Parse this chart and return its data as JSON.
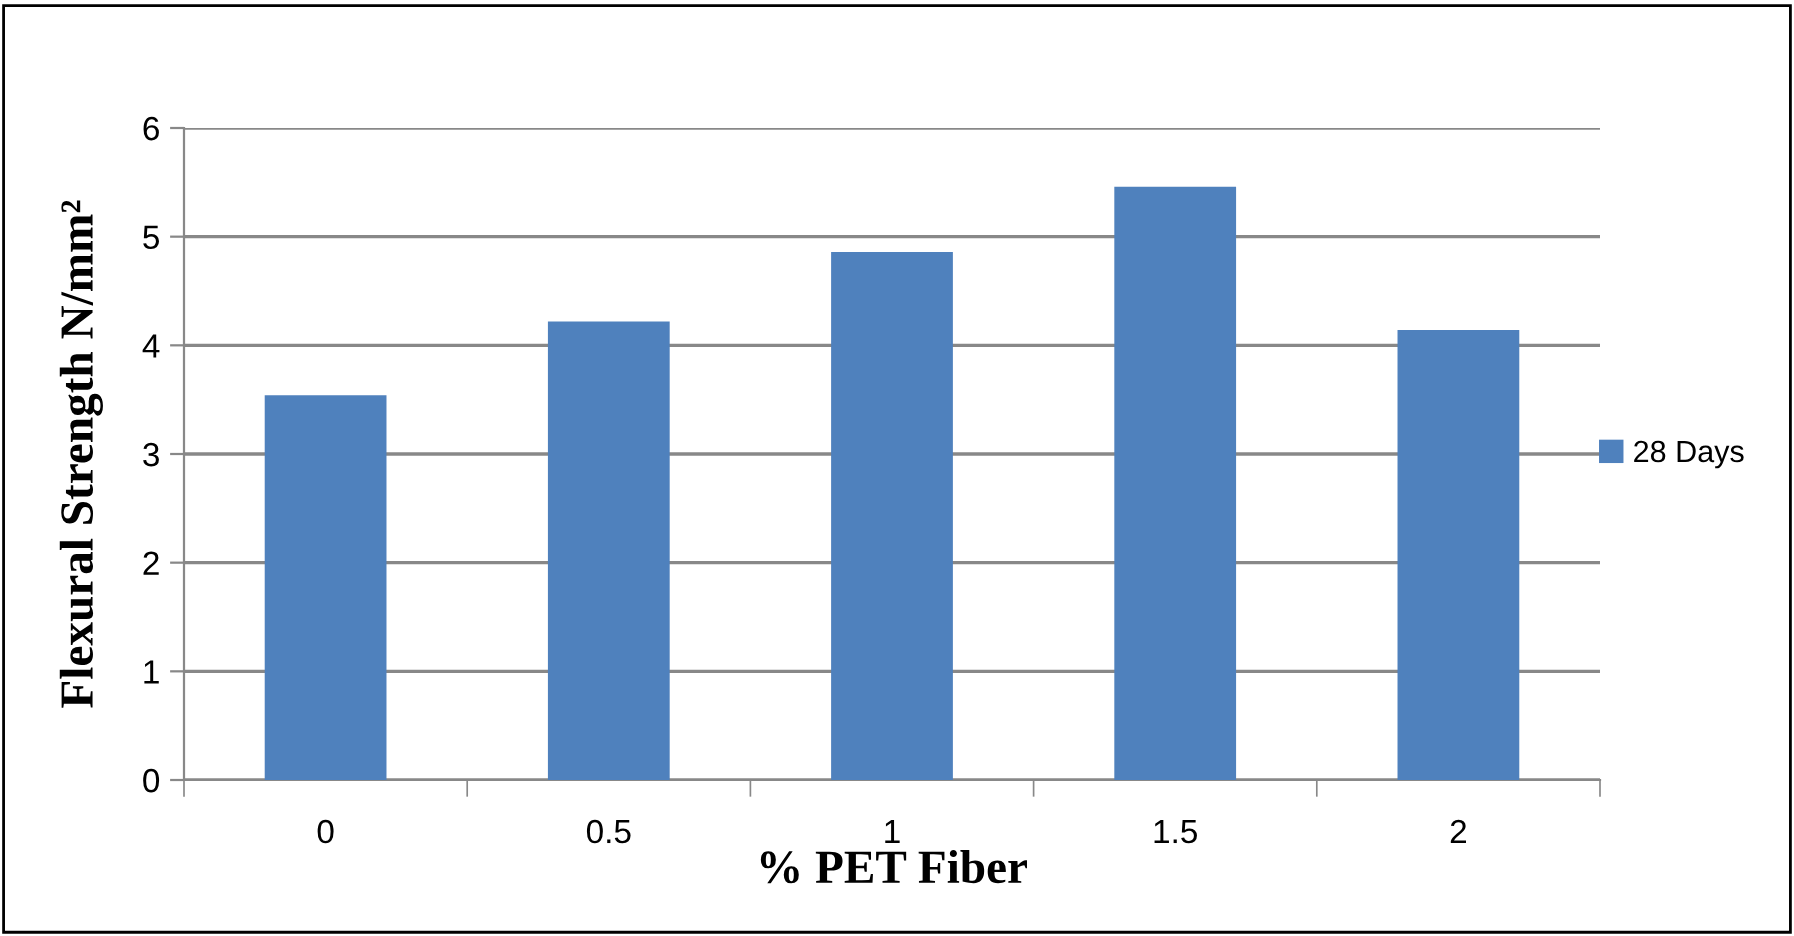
{
  "chart_data": {
    "type": "bar",
    "xlabel": "% PET Fiber",
    "ylabel": "Flexural Strength N/mm²",
    "categories": [
      "0",
      "0.5",
      "1",
      "1.5",
      "2"
    ],
    "series": [
      {
        "name": "28 Days",
        "color": "#4f81bd",
        "values": [
          3.54,
          4.22,
          4.86,
          5.46,
          4.14
        ]
      }
    ],
    "ylim": [
      0,
      6
    ],
    "yticks": [
      0,
      1,
      2,
      3,
      4,
      5,
      6
    ],
    "grid": "y",
    "legend": "right"
  }
}
